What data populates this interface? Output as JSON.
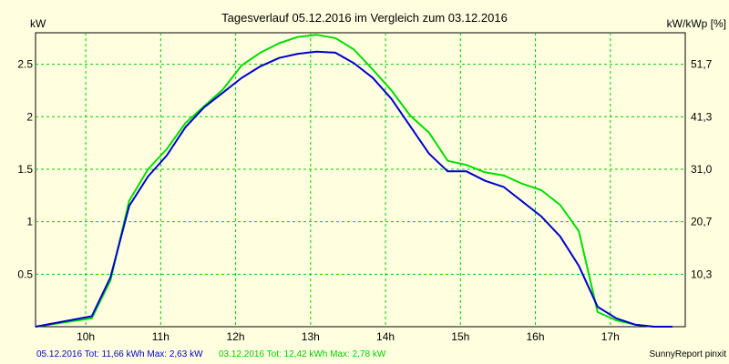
{
  "chart_data": {
    "type": "line",
    "title": "Tagesverlauf 05.12.2016 im Vergleich zum 03.12.2016",
    "ylabel_left": "kW",
    "ylabel_right": "kW/kWp [%]",
    "x_ticks": [
      {
        "x": 10,
        "label": "10h"
      },
      {
        "x": 11,
        "label": "11h"
      },
      {
        "x": 12,
        "label": "12h"
      },
      {
        "x": 13,
        "label": "13h"
      },
      {
        "x": 14,
        "label": "14h"
      },
      {
        "x": 15,
        "label": "15h"
      },
      {
        "x": 16,
        "label": "16h"
      },
      {
        "x": 17,
        "label": "17h"
      }
    ],
    "xlim": [
      9.33,
      18.0
    ],
    "y_ticks_left": [
      {
        "v": 0.5,
        "label": "0.5"
      },
      {
        "v": 1.0,
        "label": "1"
      },
      {
        "v": 1.5,
        "label": "1.5"
      },
      {
        "v": 2.0,
        "label": "2"
      },
      {
        "v": 2.5,
        "label": "2.5"
      }
    ],
    "y_ticks_right": [
      {
        "v": 0.5,
        "label": "10,3"
      },
      {
        "v": 1.0,
        "label": "20,7"
      },
      {
        "v": 1.5,
        "label": "31,0"
      },
      {
        "v": 2.0,
        "label": "41,3"
      },
      {
        "v": 2.5,
        "label": "51,7"
      }
    ],
    "ylim": [
      0,
      2.8
    ],
    "grid": true,
    "series": [
      {
        "color": "#0000cc",
        "x": [
          9.33,
          10.08,
          10.33,
          10.58,
          10.83,
          11.08,
          11.33,
          11.58,
          11.83,
          12.08,
          12.33,
          12.58,
          12.83,
          13.08,
          13.33,
          13.58,
          13.83,
          14.08,
          14.33,
          14.58,
          14.83,
          15.08,
          15.33,
          15.58,
          15.83,
          16.08,
          16.33,
          16.58,
          16.83,
          17.08,
          17.33,
          17.58,
          17.83
        ],
        "y": [
          0.0,
          0.1,
          0.47,
          1.15,
          1.43,
          1.63,
          1.9,
          2.09,
          2.23,
          2.37,
          2.48,
          2.56,
          2.6,
          2.62,
          2.61,
          2.51,
          2.37,
          2.17,
          1.91,
          1.65,
          1.48,
          1.48,
          1.39,
          1.33,
          1.19,
          1.05,
          0.86,
          0.58,
          0.19,
          0.08,
          0.02,
          0.0,
          0.0
        ]
      },
      {
        "color": "#00dd00",
        "x": [
          9.33,
          10.08,
          10.33,
          10.58,
          10.83,
          11.08,
          11.33,
          11.58,
          11.83,
          12.08,
          12.33,
          12.58,
          12.83,
          13.08,
          13.33,
          13.58,
          13.83,
          14.08,
          14.33,
          14.58,
          14.83,
          15.08,
          15.33,
          15.58,
          15.83,
          16.08,
          16.33,
          16.58,
          16.83,
          17.08,
          17.33,
          17.58,
          17.83
        ],
        "y": [
          0.0,
          0.08,
          0.44,
          1.2,
          1.5,
          1.69,
          1.94,
          2.1,
          2.26,
          2.49,
          2.61,
          2.7,
          2.76,
          2.78,
          2.75,
          2.64,
          2.45,
          2.25,
          2.01,
          1.85,
          1.58,
          1.54,
          1.47,
          1.44,
          1.36,
          1.3,
          1.16,
          0.91,
          0.14,
          0.06,
          0.02,
          0.0,
          0.0
        ]
      }
    ],
    "legend": [
      {
        "text": "05.12.2016 Tot: 11,66 kWh Max: 2,63 kW",
        "color": "#0000cc"
      },
      {
        "text": "03.12.2016 Tot: 12,42 kWh Max: 2,78 kW",
        "color": "#00cc00"
      }
    ],
    "credit": "SunnyReport pinxit"
  }
}
